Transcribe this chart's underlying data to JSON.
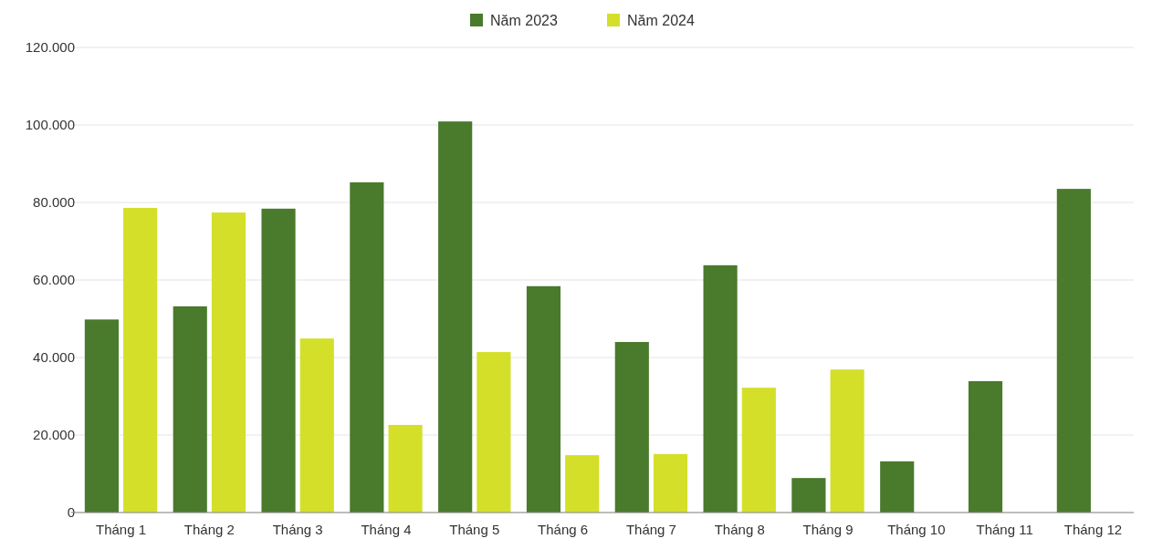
{
  "chart_data": {
    "type": "bar",
    "categories": [
      "Tháng 1",
      "Tháng 2",
      "Tháng 3",
      "Tháng 4",
      "Tháng 5",
      "Tháng 6",
      "Tháng 7",
      "Tháng 8",
      "Tháng 9",
      "Tháng 10",
      "Tháng 11",
      "Tháng 12"
    ],
    "series": [
      {
        "name": "Năm 2023",
        "color": "#4a7a2c",
        "values": [
          49800,
          53200,
          78400,
          85200,
          100900,
          58400,
          44000,
          63800,
          8900,
          13200,
          33900,
          83500
        ]
      },
      {
        "name": "Năm 2024",
        "color": "#d4df2a",
        "values": [
          78600,
          77400,
          44900,
          22600,
          41400,
          14800,
          15100,
          32200,
          36900,
          null,
          null,
          null
        ]
      }
    ],
    "ylim": [
      0,
      120000
    ],
    "yticks": [
      {
        "value": 0,
        "label": "0"
      },
      {
        "value": 20000,
        "label": "20.000"
      },
      {
        "value": 40000,
        "label": "40.000"
      },
      {
        "value": 60000,
        "label": "60.000"
      },
      {
        "value": 80000,
        "label": "80.000"
      },
      {
        "value": 100000,
        "label": "100.000"
      },
      {
        "value": 120000,
        "label": "120.000"
      }
    ],
    "grid": "y",
    "legend": "top"
  }
}
